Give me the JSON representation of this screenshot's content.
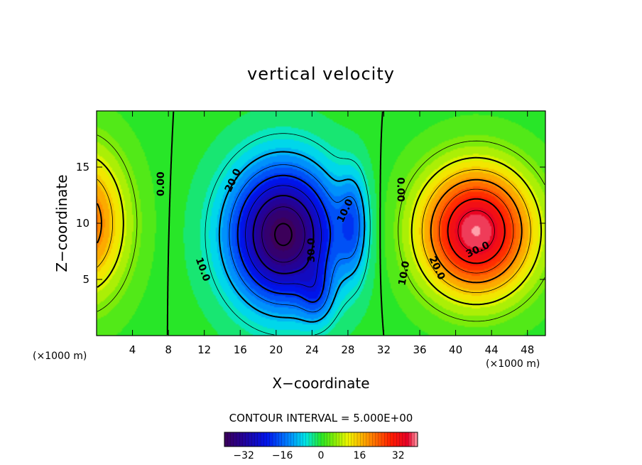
{
  "chart_data": {
    "type": "heatmap",
    "title": "vertical velocity",
    "xlabel": "X−coordinate",
    "ylabel": "Z−coordinate",
    "x_unit": "(×1000 m)",
    "y_unit": "(×1000 m)",
    "xlim": [
      0,
      50
    ],
    "ylim": [
      0,
      20
    ],
    "x_ticks": [
      4,
      8,
      12,
      16,
      20,
      24,
      28,
      32,
      36,
      40,
      44,
      48
    ],
    "y_ticks": [
      5,
      10,
      15
    ],
    "contour_interval_text": "CONTOUR INTERVAL = 5.000E+00",
    "contour_interval": 5,
    "value_range": [
      -40,
      40
    ],
    "colorbar_ticks": [
      "−32",
      "−16",
      "0",
      "16",
      "32"
    ],
    "colorbar_tick_values": [
      -32,
      -16,
      0,
      16,
      32
    ],
    "field_centers": [
      {
        "name": "updraft-east",
        "x": 42.5,
        "z": 9.5,
        "value": 38
      },
      {
        "name": "downdraft-center",
        "x": 21,
        "z": 9,
        "value": -40
      },
      {
        "name": "updraft-west-edge",
        "x": 0,
        "z": 10,
        "value": 22
      },
      {
        "name": "secondary-downdraft",
        "x": 28.5,
        "z": 10,
        "value": -14
      }
    ],
    "contour_labels": [
      {
        "text": "0.00",
        "x": 7.5,
        "z": 13.5,
        "angle": -90
      },
      {
        "text": "20.0",
        "x": 15.5,
        "z": 13.7,
        "angle": -65
      },
      {
        "text": "10.0",
        "x": 11.5,
        "z": 5.8,
        "angle": 70
      },
      {
        "text": "30.0",
        "x": 24.3,
        "z": 7.6,
        "angle": -90
      },
      {
        "text": "10.0",
        "x": 28,
        "z": 11,
        "angle": -65
      },
      {
        "text": "0.00",
        "x": 33.5,
        "z": 13,
        "angle": 90
      },
      {
        "text": "10.0",
        "x": 34.6,
        "z": 5.5,
        "angle": -80
      },
      {
        "text": "20.0",
        "x": 37.6,
        "z": 5.9,
        "angle": 65
      },
      {
        "text": "30.0",
        "x": 42.6,
        "z": 7.4,
        "angle": -25
      }
    ]
  }
}
